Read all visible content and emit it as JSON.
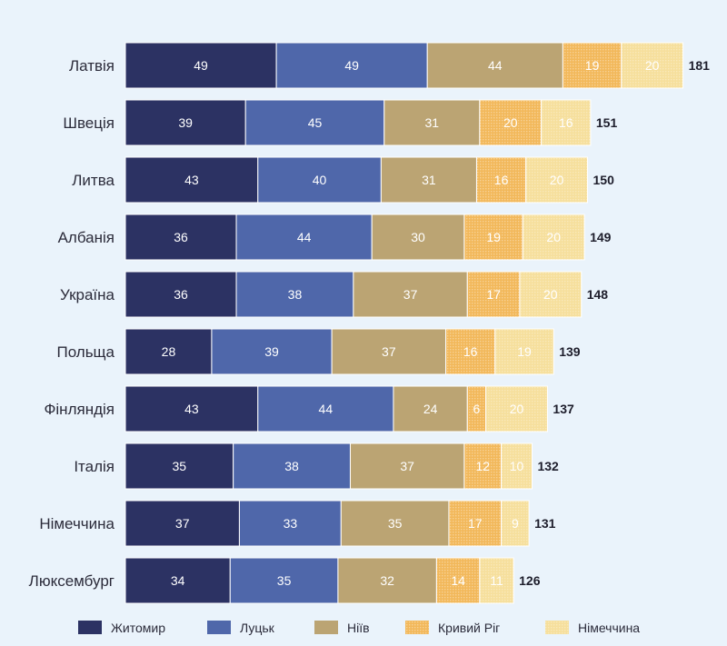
{
  "chart_data": {
    "type": "bar",
    "orientation": "horizontal",
    "stacked": true,
    "categories": [
      "Латвія",
      "Швеція",
      "Литва",
      "Албанія",
      "Україна",
      "Польща",
      "Фінляндія",
      "Італія",
      "Німеччина",
      "Люксембург"
    ],
    "series": [
      {
        "name": "Житомир",
        "color": "#2c3263",
        "values": [
          49,
          39,
          43,
          36,
          36,
          28,
          43,
          35,
          37,
          34
        ]
      },
      {
        "name": "Луцьк",
        "color": "#4f67aa",
        "values": [
          49,
          45,
          40,
          44,
          38,
          39,
          44,
          38,
          33,
          35
        ]
      },
      {
        "name": "Ніїв",
        "color": "#bba473",
        "values": [
          44,
          31,
          31,
          30,
          37,
          37,
          24,
          37,
          35,
          32
        ]
      },
      {
        "name": "Кривий Ріг",
        "color": "#f2b85a",
        "values": [
          19,
          20,
          16,
          19,
          17,
          16,
          6,
          12,
          17,
          14
        ]
      },
      {
        "name": "Німеччина",
        "color": "#f6df9c",
        "values": [
          20,
          16,
          20,
          20,
          20,
          19,
          20,
          10,
          9,
          11
        ]
      }
    ],
    "totals": [
      181,
      151,
      150,
      149,
      148,
      139,
      137,
      132,
      131,
      126
    ],
    "legend_position": "bottom",
    "grid": false
  }
}
